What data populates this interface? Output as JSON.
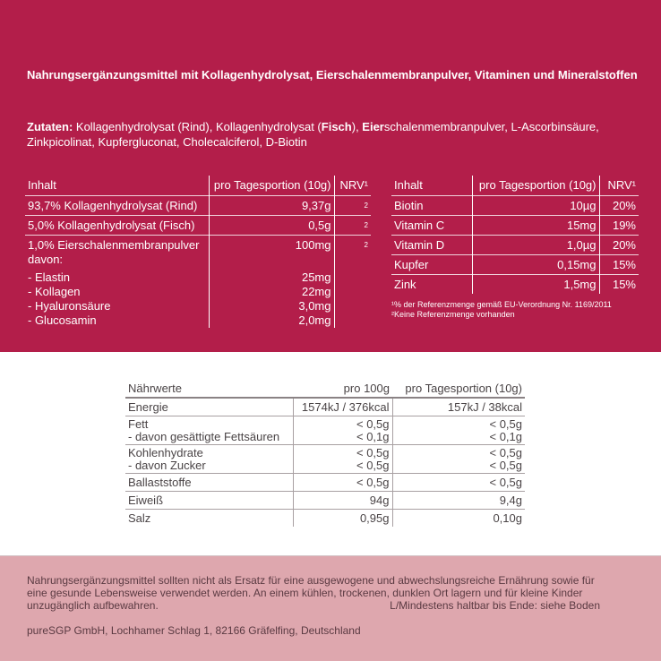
{
  "colors": {
    "top_bg": "#b31e4a",
    "bottom_bg": "#dea7ae",
    "text_dark": "#4a4446"
  },
  "title": "Nahrungsergänzungsmittel mit Kollagenhydrolysat, Eierschalenmembranpulver, Vitaminen und Mineralstoffen",
  "ingredients": {
    "label": "Zutaten:",
    "p1": " Kollagenhydrolysat (Rind), Kollagenhydrolysat (",
    "b1": "Fisch",
    "p2": "), ",
    "b2": "Eier",
    "p3": "schalenmembranpulver, L-Ascorbinsäure, Zinkpicolinat, Kupfergluconat, Cholecalciferol, D-Biotin"
  },
  "table1": {
    "headers": [
      "Inhalt",
      "pro Tagesportion (10g)",
      "NRV¹"
    ],
    "rows": [
      {
        "name": "93,7% Kollagenhydrolysat (Rind)",
        "value": "9,37g",
        "nrv": "2"
      },
      {
        "name": "5,0% Kollagenhydrolysat (Fisch)",
        "value": "0,5g",
        "nrv": "2"
      }
    ],
    "multi": {
      "name": "1,0% Eierschalenmembranpulver",
      "value": "100mg",
      "nrv": "2",
      "davon": "davon:",
      "subs": [
        {
          "name": "- Elastin",
          "value": "25mg"
        },
        {
          "name": "- Kollagen",
          "value": "22mg"
        },
        {
          "name": "- Hyaluronsäure",
          "value": "3,0mg"
        },
        {
          "name": "- Glucosamin",
          "value": "2,0mg"
        }
      ]
    }
  },
  "table2": {
    "headers": [
      "Inhalt",
      "pro Tagesportion (10g)",
      "NRV¹"
    ],
    "rows": [
      {
        "name": "Biotin",
        "value": "10µg",
        "nrv": "20%"
      },
      {
        "name": "Vitamin C",
        "value": "15mg",
        "nrv": "19%"
      },
      {
        "name": "Vitamin D",
        "value": "1,0µg",
        "nrv": "20%"
      },
      {
        "name": "Kupfer",
        "value": "0,15mg",
        "nrv": "15%"
      },
      {
        "name": "Zink",
        "value": "1,5mg",
        "nrv": "15%"
      }
    ]
  },
  "footnotes": [
    "¹% der Referenzmenge gemäß EU-Verordnung Nr. 1169/2011",
    "²Keine Referenzmenge vorhanden"
  ],
  "nutrition": {
    "headers": [
      "Nährwerte",
      "pro 100g",
      "pro Tagesportion (10g)"
    ],
    "rows": [
      {
        "name": "Energie",
        "a": "1574kJ / 376kcal",
        "b": "157kJ / 38kcal"
      },
      {
        "name": "Fett",
        "a": "< 0,5g",
        "b": "< 0,5g",
        "sub": "- davon gesättigte Fettsäuren",
        "sa": "< 0,1g",
        "sb": "< 0,1g"
      },
      {
        "name": "Kohlenhydrate",
        "a": "< 0,5g",
        "b": "< 0,5g",
        "sub": "- davon Zucker",
        "sa": "< 0,5g",
        "sb": "< 0,5g"
      },
      {
        "name": "Ballaststoffe",
        "a": "< 0,5g",
        "b": "< 0,5g"
      },
      {
        "name": "Eiweiß",
        "a": "94g",
        "b": "9,4g"
      },
      {
        "name": "Salz",
        "a": "0,95g",
        "b": "0,10g"
      }
    ]
  },
  "notice": "Nahrungsergänzungsmittel sollten nicht als Ersatz für eine ausgewogene und abwechslungsreiche Ernährung sowie für eine gesunde Lebensweise verwendet werden. An einem kühlen, trockenen, dunklen Ort lagern und für kleine Kinder unzugänglich aufbewahren.",
  "lot": "L/Mindestens haltbar bis Ende: siehe Boden",
  "address": "pureSGP GmbH, Lochhamer Schlag 1, 82166 Gräfelfing, Deutschland"
}
